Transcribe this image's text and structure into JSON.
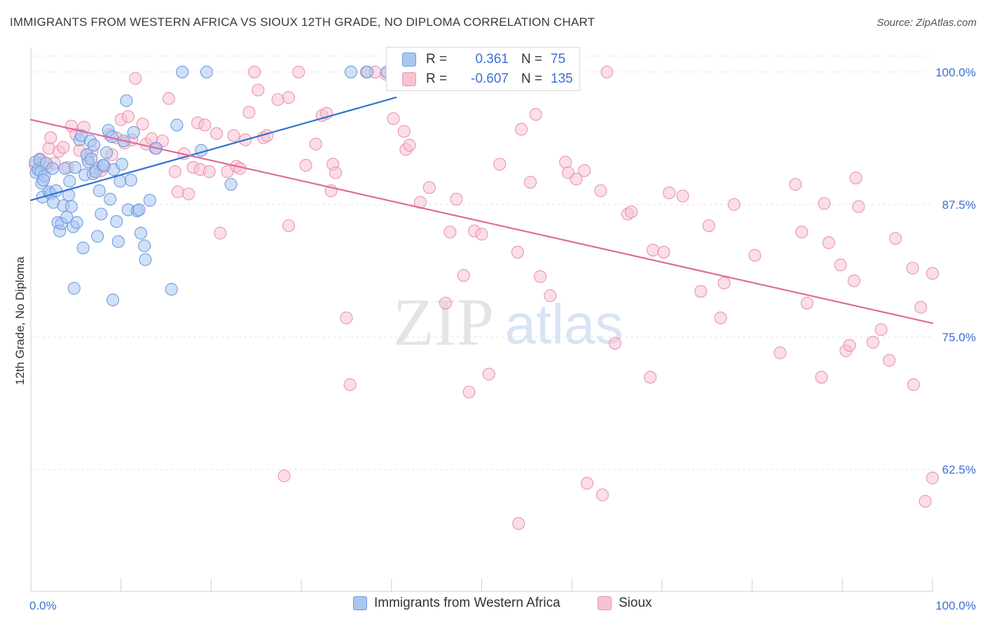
{
  "title": "IMMIGRANTS FROM WESTERN AFRICA VS SIOUX 12TH GRADE, NO DIPLOMA CORRELATION CHART",
  "source": "Source: ZipAtlas.com",
  "watermark": {
    "zip": "ZIP",
    "atlas": "atlas"
  },
  "stats": [
    {
      "r_label": "R =",
      "r_value": "0.361",
      "n_label": "N =",
      "n_value": "75",
      "color": "#aac6f0",
      "border": "#6f9be0"
    },
    {
      "r_label": "R =",
      "r_value": "-0.607",
      "n_label": "N =",
      "n_value": "135",
      "color": "#f7c3d3",
      "border": "#e895b0"
    }
  ],
  "chart_data": {
    "type": "scatter",
    "title": "IMMIGRANTS FROM WESTERN AFRICA VS SIOUX 12TH GRADE, NO DIPLOMA CORRELATION CHART",
    "xlabel": "",
    "ylabel": "12th Grade, No Diploma",
    "xlim": [
      0,
      100
    ],
    "ylim": [
      51,
      102.3
    ],
    "x_tick_labels": [
      {
        "value": 0,
        "label": "0.0%"
      },
      {
        "value": 100,
        "label": "100.0%"
      }
    ],
    "y_tick_labels": [
      {
        "value": 100,
        "label": "100.0%"
      },
      {
        "value": 87.5,
        "label": "87.5%"
      },
      {
        "value": 75,
        "label": "75.0%"
      },
      {
        "value": 62.5,
        "label": "62.5%"
      }
    ],
    "legend_position": "bottom",
    "series": [
      {
        "name": "Immigrants from Western Africa",
        "color": "#6f9be0",
        "fill": "#aac6f0",
        "line_color": "#2f74d0",
        "trend": {
          "x": [
            0,
            40.5
          ],
          "y": [
            87.9,
            97.6
          ]
        },
        "points": [
          [
            0.5,
            91.5
          ],
          [
            0.6,
            90.5
          ],
          [
            0.8,
            90.8
          ],
          [
            1.0,
            91.7
          ],
          [
            1.1,
            90.6
          ],
          [
            1.2,
            89.5
          ],
          [
            1.3,
            88.2
          ],
          [
            1.5,
            90.2
          ],
          [
            1.7,
            91.4
          ],
          [
            2.0,
            88.7
          ],
          [
            2.2,
            88.5
          ],
          [
            2.4,
            90.9
          ],
          [
            2.5,
            87.7
          ],
          [
            2.8,
            88.8
          ],
          [
            3.0,
            85.8
          ],
          [
            3.2,
            85.0
          ],
          [
            3.4,
            85.7
          ],
          [
            3.6,
            87.4
          ],
          [
            3.8,
            90.9
          ],
          [
            4.0,
            86.3
          ],
          [
            4.2,
            88.4
          ],
          [
            4.3,
            89.7
          ],
          [
            4.5,
            87.3
          ],
          [
            4.7,
            85.4
          ],
          [
            4.9,
            91.0
          ],
          [
            5.1,
            85.8
          ],
          [
            5.4,
            93.6
          ],
          [
            5.6,
            94.0
          ],
          [
            5.8,
            83.4
          ],
          [
            6.0,
            90.3
          ],
          [
            6.2,
            92.2
          ],
          [
            6.4,
            91.5
          ],
          [
            6.6,
            93.5
          ],
          [
            6.7,
            91.8
          ],
          [
            6.9,
            90.4
          ],
          [
            7.0,
            93.1
          ],
          [
            7.2,
            90.6
          ],
          [
            7.4,
            84.5
          ],
          [
            7.6,
            88.8
          ],
          [
            7.8,
            86.6
          ],
          [
            8.0,
            91.2
          ],
          [
            8.1,
            91.2
          ],
          [
            8.4,
            92.4
          ],
          [
            8.6,
            94.5
          ],
          [
            8.8,
            88.0
          ],
          [
            9.0,
            93.9
          ],
          [
            9.2,
            90.8
          ],
          [
            9.5,
            85.9
          ],
          [
            9.7,
            84.0
          ],
          [
            9.9,
            89.7
          ],
          [
            10.1,
            91.3
          ],
          [
            10.3,
            93.5
          ],
          [
            10.6,
            97.3
          ],
          [
            10.8,
            87.0
          ],
          [
            11.1,
            89.8
          ],
          [
            11.4,
            94.3
          ],
          [
            11.8,
            86.9
          ],
          [
            12.0,
            87.0
          ],
          [
            12.2,
            84.8
          ],
          [
            12.6,
            83.6
          ],
          [
            12.7,
            82.3
          ],
          [
            13.2,
            87.9
          ],
          [
            13.9,
            92.8
          ],
          [
            4.8,
            79.6
          ],
          [
            9.1,
            78.5
          ],
          [
            15.6,
            79.5
          ],
          [
            16.2,
            95.0
          ],
          [
            16.8,
            100.0
          ],
          [
            18.9,
            92.6
          ],
          [
            22.2,
            89.4
          ],
          [
            19.5,
            100.0
          ],
          [
            35.5,
            100.0
          ],
          [
            37.3,
            100.0
          ],
          [
            39.5,
            100.0
          ],
          [
            1.4,
            89.8
          ]
        ]
      },
      {
        "name": "Sioux",
        "color": "#e895b0",
        "fill": "#f7c3d3",
        "line_color": "#e06a97",
        "trend": {
          "x": [
            0,
            100
          ],
          "y": [
            95.5,
            76.3
          ]
        },
        "points": [
          [
            0.5,
            91.2
          ],
          [
            1.0,
            91.8
          ],
          [
            1.4,
            91.5
          ],
          [
            1.8,
            91.0
          ],
          [
            2.0,
            92.8
          ],
          [
            2.2,
            93.8
          ],
          [
            2.6,
            91.4
          ],
          [
            3.1,
            92.5
          ],
          [
            3.6,
            92.9
          ],
          [
            4.1,
            91.0
          ],
          [
            4.5,
            94.9
          ],
          [
            5.0,
            94.1
          ],
          [
            5.4,
            92.6
          ],
          [
            5.9,
            94.8
          ],
          [
            6.3,
            91.8
          ],
          [
            6.8,
            92.5
          ],
          [
            7.2,
            90.9
          ],
          [
            7.8,
            90.7
          ],
          [
            8.2,
            91.1
          ],
          [
            8.7,
            94.1
          ],
          [
            9.0,
            92.2
          ],
          [
            9.5,
            93.8
          ],
          [
            10.0,
            95.5
          ],
          [
            10.4,
            93.3
          ],
          [
            10.8,
            95.8
          ],
          [
            11.2,
            93.6
          ],
          [
            11.6,
            99.4
          ],
          [
            12.4,
            95.1
          ],
          [
            12.8,
            93.2
          ],
          [
            13.4,
            93.7
          ],
          [
            13.8,
            92.8
          ],
          [
            14.6,
            93.5
          ],
          [
            15.3,
            97.5
          ],
          [
            16.0,
            90.6
          ],
          [
            16.3,
            88.7
          ],
          [
            17.0,
            92.3
          ],
          [
            17.5,
            88.5
          ],
          [
            18.0,
            91.0
          ],
          [
            18.5,
            95.2
          ],
          [
            18.8,
            90.8
          ],
          [
            19.3,
            95.0
          ],
          [
            19.8,
            90.6
          ],
          [
            20.6,
            94.2
          ],
          [
            21.0,
            84.8
          ],
          [
            21.8,
            90.6
          ],
          [
            22.5,
            94.0
          ],
          [
            22.8,
            91.1
          ],
          [
            23.2,
            90.9
          ],
          [
            23.8,
            93.6
          ],
          [
            24.2,
            96.2
          ],
          [
            24.8,
            100.0
          ],
          [
            25.2,
            98.3
          ],
          [
            25.8,
            93.8
          ],
          [
            26.2,
            94.0
          ],
          [
            27.4,
            97.4
          ],
          [
            28.6,
            97.6
          ],
          [
            29.7,
            100.0
          ],
          [
            30.5,
            91.2
          ],
          [
            31.6,
            93.2
          ],
          [
            32.3,
            95.9
          ],
          [
            32.8,
            96.1
          ],
          [
            33.3,
            88.8
          ],
          [
            33.5,
            91.3
          ],
          [
            33.8,
            90.5
          ],
          [
            35.0,
            76.8
          ],
          [
            35.4,
            70.5
          ],
          [
            28.6,
            85.5
          ],
          [
            28.1,
            61.9
          ],
          [
            37.2,
            100.0
          ],
          [
            38.2,
            100.0
          ],
          [
            39.4,
            99.8
          ],
          [
            40.2,
            95.6
          ],
          [
            41.4,
            94.4
          ],
          [
            41.6,
            92.7
          ],
          [
            42.0,
            93.1
          ],
          [
            43.2,
            87.7
          ],
          [
            44.2,
            89.1
          ],
          [
            46.0,
            78.2
          ],
          [
            46.5,
            84.9
          ],
          [
            47.2,
            88.0
          ],
          [
            48.0,
            80.8
          ],
          [
            48.6,
            69.8
          ],
          [
            49.2,
            85.0
          ],
          [
            50.0,
            84.7
          ],
          [
            50.8,
            71.5
          ],
          [
            52.0,
            91.3
          ],
          [
            54.0,
            83.0
          ],
          [
            54.4,
            94.6
          ],
          [
            55.4,
            89.6
          ],
          [
            56.0,
            96.0
          ],
          [
            56.5,
            80.7
          ],
          [
            57.6,
            78.9
          ],
          [
            59.3,
            91.5
          ],
          [
            59.6,
            90.5
          ],
          [
            60.5,
            89.9
          ],
          [
            61.4,
            90.7
          ],
          [
            61.7,
            61.2
          ],
          [
            63.2,
            88.8
          ],
          [
            63.4,
            60.1
          ],
          [
            63.9,
            100.0
          ],
          [
            64.8,
            74.4
          ],
          [
            66.2,
            86.6
          ],
          [
            66.6,
            86.8
          ],
          [
            68.7,
            71.2
          ],
          [
            69.0,
            83.2
          ],
          [
            70.2,
            83.0
          ],
          [
            70.8,
            88.6
          ],
          [
            72.3,
            88.3
          ],
          [
            74.3,
            79.3
          ],
          [
            75.2,
            85.5
          ],
          [
            76.5,
            76.8
          ],
          [
            76.9,
            80.1
          ],
          [
            78.0,
            87.5
          ],
          [
            80.3,
            82.7
          ],
          [
            83.1,
            73.5
          ],
          [
            84.8,
            89.4
          ],
          [
            85.5,
            84.9
          ],
          [
            86.1,
            78.2
          ],
          [
            87.7,
            71.2
          ],
          [
            88.0,
            87.6
          ],
          [
            88.5,
            83.9
          ],
          [
            89.8,
            81.8
          ],
          [
            90.4,
            73.7
          ],
          [
            90.8,
            74.2
          ],
          [
            91.3,
            80.3
          ],
          [
            91.5,
            90.0
          ],
          [
            91.8,
            87.3
          ],
          [
            93.4,
            74.5
          ],
          [
            94.3,
            75.7
          ],
          [
            95.2,
            72.8
          ],
          [
            95.9,
            84.3
          ],
          [
            97.8,
            81.5
          ],
          [
            97.9,
            70.5
          ],
          [
            98.7,
            77.8
          ],
          [
            99.2,
            59.5
          ],
          [
            100.0,
            81.0
          ],
          [
            100.0,
            61.7
          ],
          [
            54.1,
            57.4
          ]
        ]
      }
    ]
  }
}
